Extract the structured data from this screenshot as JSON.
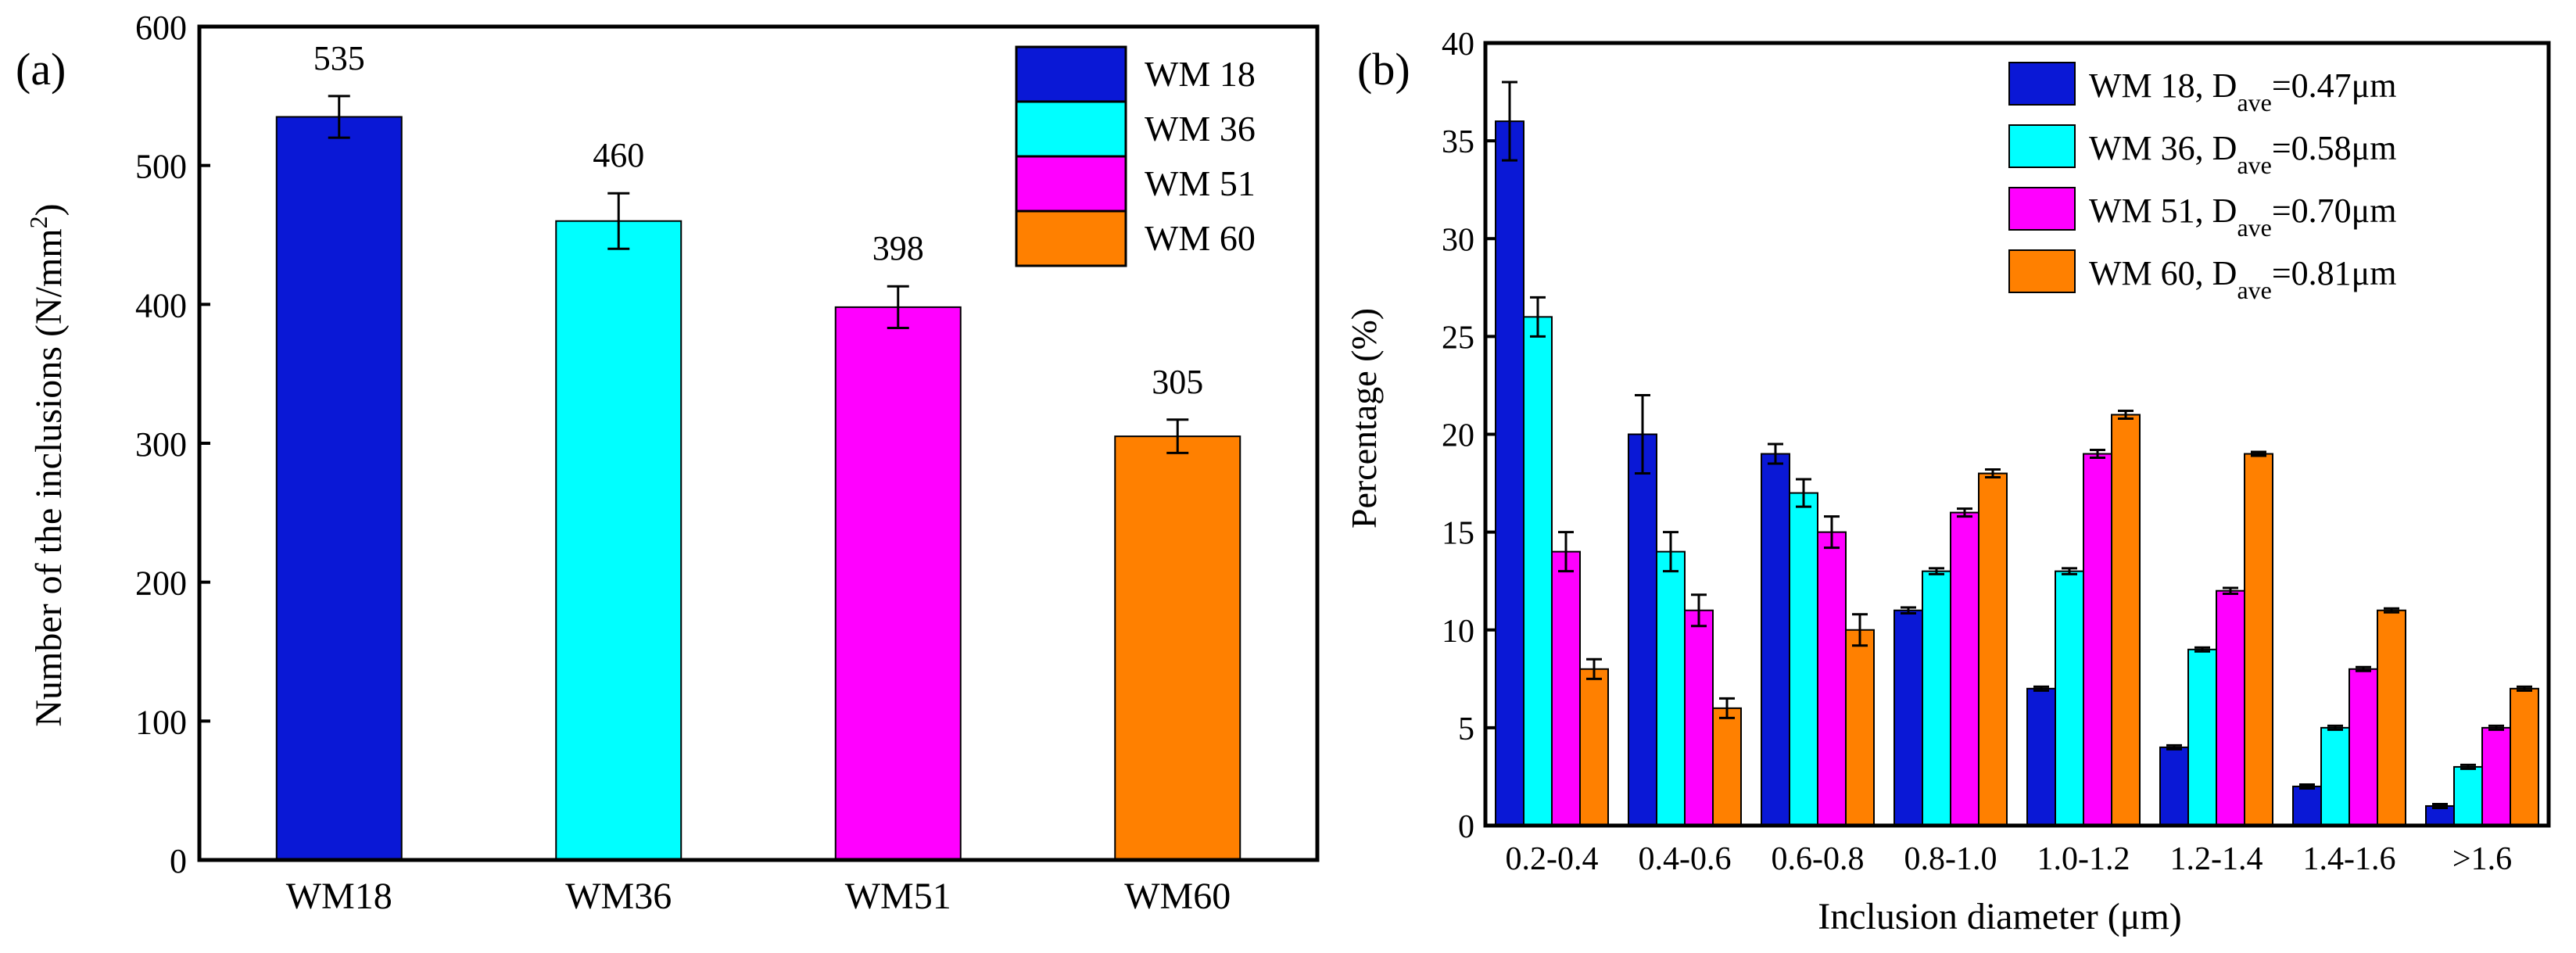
{
  "colors": {
    "WM 18": "#0a18d6",
    "WM 36": "#00ffff",
    "WM 51": "#ff00ff",
    "WM 60": "#ff8000"
  },
  "chart_data": [
    {
      "panel_label": "(a)",
      "type": "bar",
      "title": "",
      "xlabel": "",
      "ylabel_prefix": "Number of the inclusions (N/mm",
      "ylabel_sup": "2",
      "ylabel_suffix": ")",
      "ylim": [
        0,
        600
      ],
      "yticks": [
        "0",
        "100",
        "200",
        "300",
        "400",
        "500",
        "600"
      ],
      "categories": [
        "WM18",
        "WM36",
        "WM51",
        "WM60"
      ],
      "values": [
        535,
        460,
        398,
        305
      ],
      "value_labels": [
        "535",
        "460",
        "398",
        "305"
      ],
      "errors": [
        15,
        20,
        15,
        12
      ],
      "legend": [
        "WM 18",
        "WM 36",
        "WM 51",
        "WM 60"
      ],
      "legend_position": "top-right",
      "grid": false
    },
    {
      "panel_label": "(b)",
      "type": "bar",
      "title": "",
      "xlabel": "Inclusion diameter (μm)",
      "ylabel": "Percentage (%)",
      "ylim": [
        0,
        40
      ],
      "yticks": [
        "0",
        "5",
        "10",
        "15",
        "20",
        "25",
        "30",
        "35",
        "40"
      ],
      "categories": [
        "0.2-0.4",
        "0.4-0.6",
        "0.6-0.8",
        "0.8-1.0",
        "1.0-1.2",
        "1.2-1.4",
        "1.4-1.6",
        ">1.6"
      ],
      "series": [
        {
          "name": "WM 18",
          "legend_prefix": "WM 18, D",
          "legend_sub": "ave",
          "legend_suffix": "=0.47μm",
          "values": [
            36,
            20,
            19,
            11,
            7,
            4,
            2,
            1
          ],
          "errors": [
            2,
            2,
            0.5,
            0.15,
            0.1,
            0.1,
            0.1,
            0.1
          ]
        },
        {
          "name": "WM 36",
          "legend_prefix": "WM 36, D",
          "legend_sub": "ave",
          "legend_suffix": "=0.58μm",
          "values": [
            26,
            14,
            17,
            13,
            13,
            9,
            5,
            3
          ],
          "errors": [
            1,
            1,
            0.7,
            0.15,
            0.15,
            0.1,
            0.1,
            0.1
          ]
        },
        {
          "name": "WM 51",
          "legend_prefix": "WM 51, D",
          "legend_sub": "ave",
          "legend_suffix": "=0.70μm",
          "values": [
            14,
            11,
            15,
            16,
            19,
            12,
            8,
            5
          ],
          "errors": [
            1,
            0.8,
            0.8,
            0.2,
            0.2,
            0.15,
            0.1,
            0.1
          ]
        },
        {
          "name": "WM 60",
          "legend_prefix": "WM 60, D",
          "legend_sub": "ave",
          "legend_suffix": "=0.81μm",
          "values": [
            8,
            6,
            10,
            18,
            21,
            19,
            11,
            7
          ],
          "errors": [
            0.5,
            0.5,
            0.8,
            0.2,
            0.2,
            0.1,
            0.1,
            0.1
          ]
        }
      ],
      "legend_position": "top-right",
      "grid": false
    }
  ]
}
